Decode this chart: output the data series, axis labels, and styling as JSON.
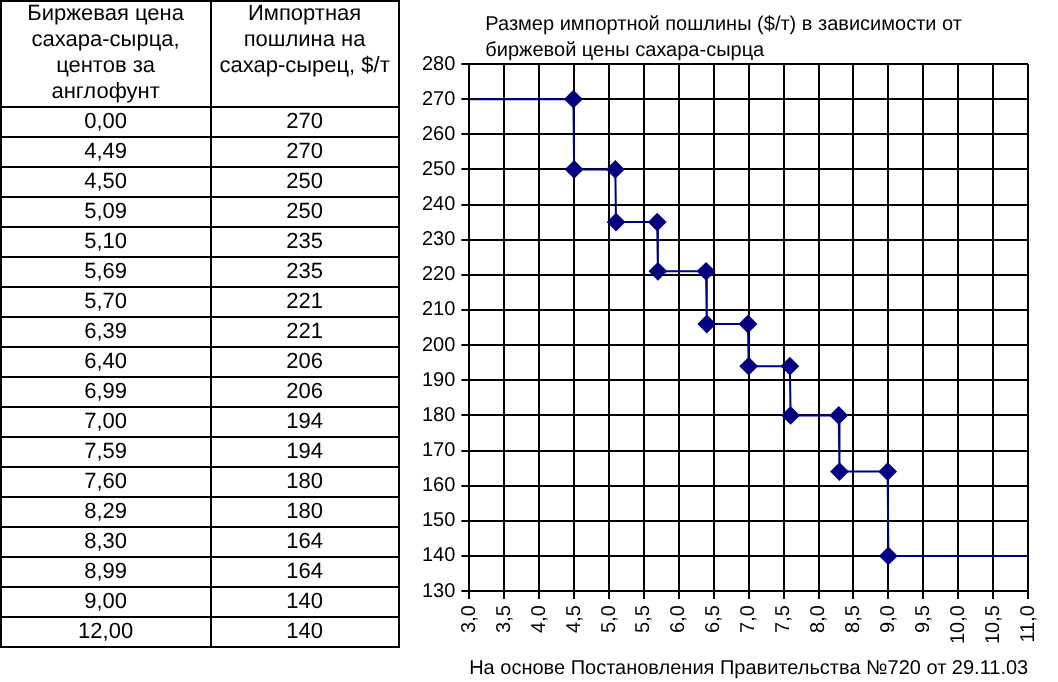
{
  "chart_data": [
    {
      "type": "other",
      "xlabel": "Биржевая цена сахара-сырца, центов за англофунт",
      "ylabel": "Импортная пошлина на сахар-сырец, $/т",
      "categories": [
        "0,00",
        "4,49",
        "4,50",
        "5,09",
        "5,10",
        "5,69",
        "5,70",
        "6,39",
        "6,40",
        "6,99",
        "7,00",
        "7,59",
        "7,60",
        "8,29",
        "8,30",
        "8,99",
        "9,00",
        "12,00"
      ],
      "values": [
        270,
        270,
        250,
        250,
        235,
        235,
        221,
        221,
        206,
        206,
        194,
        194,
        180,
        180,
        164,
        164,
        140,
        140
      ],
      "data_labels": true
    },
    {
      "type": "line",
      "title": "Размер импортной пошлины ($/т) в зависимости от биржевой цены сахара-сырца",
      "annotations": [
        "На основе Постановления Правительства №720 от 29.11.03"
      ],
      "series": [
        {
          "type": "line",
          "marker": "none",
          "color": "#000080",
          "x": [
            3,
            4.49,
            4.5,
            5.09,
            5.1,
            5.69,
            5.7,
            6.39,
            6.4,
            6.99,
            7,
            7.59,
            7.6,
            8.29,
            8.3,
            8.99,
            9,
            11
          ],
          "values": [
            270,
            270,
            250,
            250,
            235,
            235,
            221,
            221,
            206,
            206,
            194,
            194,
            180,
            180,
            164,
            164,
            140,
            140
          ]
        },
        {
          "type": "scatter",
          "color": "#000080",
          "x": [
            4.49,
            4.5,
            5.09,
            5.1,
            5.69,
            5.7,
            6.39,
            6.4,
            6.99,
            7,
            7.59,
            7.6,
            8.29,
            8.3,
            8.99,
            9
          ],
          "values": [
            270,
            250,
            250,
            235,
            235,
            221,
            221,
            206,
            206,
            194,
            194,
            180,
            180,
            164,
            164,
            140
          ]
        }
      ],
      "marker": "diamond",
      "line_style": "solid",
      "grid": true,
      "legend": false,
      "xlim": [
        3,
        11
      ],
      "xticks": [
        {
          "value": 3,
          "label": "3,0"
        },
        {
          "value": 3.5,
          "label": "3,5"
        },
        {
          "value": 4,
          "label": "4,0"
        },
        {
          "value": 4.5,
          "label": "4,5"
        },
        {
          "value": 5,
          "label": "5,0"
        },
        {
          "value": 5.5,
          "label": "5,5"
        },
        {
          "value": 6,
          "label": "6,0"
        },
        {
          "value": 6.5,
          "label": "6,5"
        },
        {
          "value": 7,
          "label": "7,0"
        },
        {
          "value": 7.5,
          "label": "7,5"
        },
        {
          "value": 8,
          "label": "8,0"
        },
        {
          "value": 8.5,
          "label": "8,5"
        },
        {
          "value": 9,
          "label": "9,0"
        },
        {
          "value": 9.5,
          "label": "9,5"
        },
        {
          "value": 10,
          "label": "10,0"
        },
        {
          "value": 10.5,
          "label": "10,5"
        },
        {
          "value": 11,
          "label": "11,0"
        }
      ],
      "ylim": [
        130,
        280
      ],
      "yticks": [
        130,
        140,
        150,
        160,
        170,
        180,
        190,
        200,
        210,
        220,
        230,
        240,
        250,
        260,
        270,
        280
      ]
    }
  ]
}
